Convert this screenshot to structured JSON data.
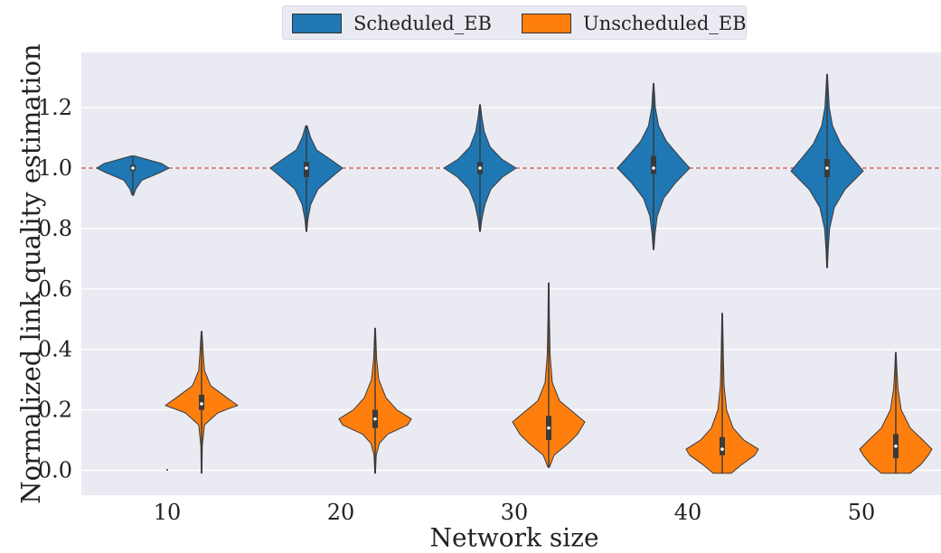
{
  "chart_data": {
    "type": "violin",
    "xlabel": "Network size",
    "ylabel": "Normalized link quality estimation",
    "categories": [
      "10",
      "20",
      "30",
      "40",
      "50"
    ],
    "ylim": [
      -0.08,
      1.4
    ],
    "yticks": [
      0.0,
      0.2,
      0.4,
      0.6,
      0.8,
      1.0,
      1.2
    ],
    "ytick_labels": [
      "0.0",
      "0.2",
      "0.4",
      "0.6",
      "0.8",
      "1.0",
      "1.2"
    ],
    "reference_line": {
      "y": 1.0,
      "color": "#c44e52",
      "style": "dashed"
    },
    "grid": true,
    "legend_position": "top-center-outside",
    "background": "#eaeaf2",
    "series": [
      {
        "name": "Scheduled_EB",
        "color": "#1f77b4",
        "violins": [
          {
            "category": "10",
            "min": 0.91,
            "max": 1.04,
            "q1": 0.99,
            "median": 1.0,
            "q3": 1.01,
            "profile": [
              [
                0.91,
                0.02
              ],
              [
                0.93,
                0.08
              ],
              [
                0.96,
                0.25
              ],
              [
                0.985,
                0.75
              ],
              [
                1.0,
                1.0
              ],
              [
                1.015,
                0.8
              ],
              [
                1.03,
                0.35
              ],
              [
                1.04,
                0.05
              ]
            ]
          },
          {
            "category": "20",
            "min": 0.79,
            "max": 1.14,
            "q1": 0.97,
            "median": 1.0,
            "q3": 1.02,
            "profile": [
              [
                0.79,
                0.01
              ],
              [
                0.83,
                0.04
              ],
              [
                0.88,
                0.12
              ],
              [
                0.93,
                0.32
              ],
              [
                0.97,
                0.7
              ],
              [
                1.0,
                1.0
              ],
              [
                1.03,
                0.65
              ],
              [
                1.06,
                0.28
              ],
              [
                1.1,
                0.12
              ],
              [
                1.14,
                0.02
              ]
            ]
          },
          {
            "category": "30",
            "min": 0.79,
            "max": 1.21,
            "q1": 0.98,
            "median": 1.0,
            "q3": 1.02,
            "profile": [
              [
                0.79,
                0.01
              ],
              [
                0.83,
                0.05
              ],
              [
                0.88,
                0.14
              ],
              [
                0.93,
                0.3
              ],
              [
                0.97,
                0.62
              ],
              [
                1.0,
                1.0
              ],
              [
                1.03,
                0.6
              ],
              [
                1.07,
                0.28
              ],
              [
                1.12,
                0.12
              ],
              [
                1.17,
                0.05
              ],
              [
                1.21,
                0.01
              ]
            ]
          },
          {
            "category": "40",
            "min": 0.73,
            "max": 1.28,
            "q1": 0.98,
            "median": 1.0,
            "q3": 1.04,
            "profile": [
              [
                0.73,
                0.01
              ],
              [
                0.78,
                0.04
              ],
              [
                0.84,
                0.1
              ],
              [
                0.9,
                0.28
              ],
              [
                0.95,
                0.6
              ],
              [
                1.0,
                1.0
              ],
              [
                1.04,
                0.7
              ],
              [
                1.09,
                0.35
              ],
              [
                1.14,
                0.14
              ],
              [
                1.2,
                0.05
              ],
              [
                1.28,
                0.01
              ]
            ]
          },
          {
            "category": "50",
            "min": 0.67,
            "max": 1.31,
            "q1": 0.97,
            "median": 1.0,
            "q3": 1.03,
            "profile": [
              [
                0.67,
                0.01
              ],
              [
                0.73,
                0.03
              ],
              [
                0.8,
                0.07
              ],
              [
                0.87,
                0.2
              ],
              [
                0.93,
                0.5
              ],
              [
                0.99,
                1.0
              ],
              [
                1.03,
                0.72
              ],
              [
                1.08,
                0.38
              ],
              [
                1.14,
                0.15
              ],
              [
                1.2,
                0.06
              ],
              [
                1.31,
                0.01
              ]
            ]
          }
        ]
      },
      {
        "name": "Unscheduled_EB",
        "color": "#ff7f0e",
        "violins": [
          {
            "category": "10",
            "min": -0.01,
            "max": 0.46,
            "q1": 0.2,
            "median": 0.22,
            "q3": 0.25,
            "profile": [
              [
                -0.01,
                0.01
              ],
              [
                0.08,
                0.02
              ],
              [
                0.15,
                0.08
              ],
              [
                0.19,
                0.45
              ],
              [
                0.215,
                1.0
              ],
              [
                0.24,
                0.7
              ],
              [
                0.28,
                0.25
              ],
              [
                0.33,
                0.08
              ],
              [
                0.38,
                0.05
              ],
              [
                0.46,
                0.01
              ]
            ]
          },
          {
            "category": "20",
            "min": -0.01,
            "max": 0.47,
            "q1": 0.14,
            "median": 0.17,
            "q3": 0.2,
            "profile": [
              [
                -0.01,
                0.01
              ],
              [
                0.05,
                0.03
              ],
              [
                0.09,
                0.12
              ],
              [
                0.12,
                0.35
              ],
              [
                0.15,
                0.9
              ],
              [
                0.17,
                1.0
              ],
              [
                0.2,
                0.6
              ],
              [
                0.24,
                0.3
              ],
              [
                0.3,
                0.1
              ],
              [
                0.37,
                0.04
              ],
              [
                0.47,
                0.01
              ]
            ]
          },
          {
            "category": "30",
            "min": 0.01,
            "max": 0.62,
            "q1": 0.1,
            "median": 0.14,
            "q3": 0.18,
            "profile": [
              [
                0.01,
                0.02
              ],
              [
                0.05,
                0.15
              ],
              [
                0.09,
                0.55
              ],
              [
                0.12,
                0.8
              ],
              [
                0.16,
                1.0
              ],
              [
                0.19,
                0.7
              ],
              [
                0.23,
                0.3
              ],
              [
                0.29,
                0.1
              ],
              [
                0.38,
                0.04
              ],
              [
                0.5,
                0.02
              ],
              [
                0.62,
                0.01
              ]
            ]
          },
          {
            "category": "40",
            "min": -0.01,
            "max": 0.52,
            "q1": 0.05,
            "median": 0.07,
            "q3": 0.11,
            "profile": [
              [
                -0.01,
                0.25
              ],
              [
                0.02,
                0.55
              ],
              [
                0.05,
                0.9
              ],
              [
                0.07,
                1.0
              ],
              [
                0.1,
                0.6
              ],
              [
                0.14,
                0.3
              ],
              [
                0.2,
                0.12
              ],
              [
                0.28,
                0.05
              ],
              [
                0.38,
                0.03
              ],
              [
                0.52,
                0.01
              ]
            ]
          },
          {
            "category": "50",
            "min": -0.01,
            "max": 0.39,
            "q1": 0.04,
            "median": 0.08,
            "q3": 0.12,
            "profile": [
              [
                -0.01,
                0.4
              ],
              [
                0.02,
                0.7
              ],
              [
                0.05,
                0.9
              ],
              [
                0.07,
                1.0
              ],
              [
                0.1,
                0.75
              ],
              [
                0.14,
                0.4
              ],
              [
                0.2,
                0.15
              ],
              [
                0.27,
                0.06
              ],
              [
                0.33,
                0.03
              ],
              [
                0.39,
                0.01
              ]
            ]
          }
        ]
      }
    ]
  }
}
